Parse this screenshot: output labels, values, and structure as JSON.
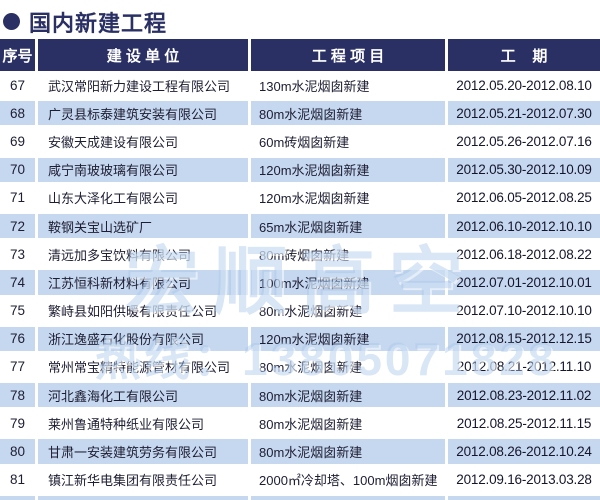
{
  "page": {
    "title": "国内新建工程",
    "colors": {
      "navy": "#2a3064",
      "row_alt": "#c6d8ef"
    }
  },
  "table": {
    "columns": {
      "no": "序号",
      "company": "建 设 单 位",
      "project": "工 程 项 目",
      "period": "工    期"
    },
    "rows": [
      {
        "no": "67",
        "company": "武汉常阳新力建设工程有限公司",
        "project": "130m水泥烟囱新建",
        "period": "2012.05.20-2012.08.10"
      },
      {
        "no": "68",
        "company": "广灵县标泰建筑安装有限公司",
        "project": "80m水泥烟囱新建",
        "period": "2012.05.21-2012.07.30"
      },
      {
        "no": "69",
        "company": "安徽天成建设有限公司",
        "project": "60m砖烟囱新建",
        "period": "2012.05.26-2012.07.16"
      },
      {
        "no": "70",
        "company": "咸宁南玻玻璃有限公司",
        "project": "120m水泥烟囱新建",
        "period": "2012.05.30-2012.10.09"
      },
      {
        "no": "71",
        "company": "山东大泽化工有限公司",
        "project": "120m水泥烟囱新建",
        "period": "2012.06.05-2012.08.25"
      },
      {
        "no": "72",
        "company": "鞍钢关宝山选矿厂",
        "project": "65m水泥烟囱新建",
        "period": "2012.06.10-2012.10.10"
      },
      {
        "no": "73",
        "company": "清远加多宝饮料有限公司",
        "project": "80m砖烟囱新建",
        "period": "2012.06.18-2012.08.22"
      },
      {
        "no": "74",
        "company": "江苏恒科新材料有限公司",
        "project": "100m水泥烟囱新建",
        "period": "2012.07.01-2012.10.01"
      },
      {
        "no": "75",
        "company": "繁峙县如阳供暖有限责任公司",
        "project": "80m水泥烟囱新建",
        "period": "2012.07.10-2012.10.10"
      },
      {
        "no": "76",
        "company": "浙江逸盛石化股份有限公司",
        "project": "120m水泥烟囱新建",
        "period": "2012.08.15-2012.12.15"
      },
      {
        "no": "77",
        "company": "常州常宝精特能源管材有限公司",
        "project": "80m水泥烟囱新建",
        "period": "2012.08.21-2012.11.10"
      },
      {
        "no": "78",
        "company": "河北鑫海化工有限公司",
        "project": "80m水泥烟囱新建",
        "period": "2012.08.23-2012.11.02"
      },
      {
        "no": "79",
        "company": "莱州鲁通特种纸业有限公司",
        "project": "80m水泥烟囱新建",
        "period": "2012.08.25-2012.11.15"
      },
      {
        "no": "80",
        "company": "甘肃一安装建筑劳务有限公司",
        "project": "80m水泥烟囱新建",
        "period": "2012.08.26-2012.10.24"
      },
      {
        "no": "81",
        "company": "镇江新华电集团有限责任公司",
        "project": "2000㎡冷却塔、100m烟囱新建",
        "period": "2012.09.16-2013.03.28"
      }
    ]
  },
  "watermark": {
    "line1": "宏顺高空",
    "line2": "热线：13805071828"
  }
}
